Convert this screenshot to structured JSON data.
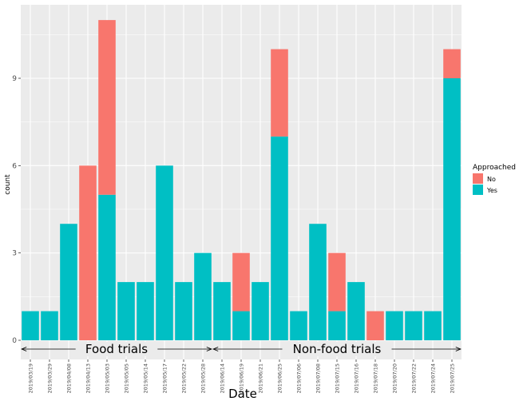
{
  "chart_data": {
    "type": "bar",
    "stacked": true,
    "title": "",
    "xlabel": "Date",
    "ylabel": "count",
    "ylim": [
      0,
      11.5
    ],
    "yticks": [
      0,
      3,
      6,
      9
    ],
    "grid": true,
    "legend": {
      "title": "Approached",
      "placement": "right",
      "entries": [
        "No",
        "Yes"
      ]
    },
    "colors": {
      "No": "#F8766D",
      "Yes": "#00BFC4",
      "panel": "#EBEBEB",
      "grid": "#FFFFFF"
    },
    "categories": [
      "2019/03/19",
      "2019/03/29",
      "2019/04/08",
      "2019/04/13",
      "2019/05/03",
      "2019/05/05",
      "2019/05/14",
      "2019/05/17",
      "2019/05/22",
      "2019/05/28",
      "2019/06/14",
      "2019/06/19",
      "2019/06/21",
      "2019/06/25",
      "2019/07/06",
      "2019/07/08",
      "2019/07/15",
      "2019/07/16",
      "2019/07/18",
      "2019/07/20",
      "2019/07/22",
      "2019/07/24",
      "2019/07/25"
    ],
    "series": [
      {
        "name": "Yes",
        "values": [
          1,
          1,
          4,
          0,
          5,
          2,
          2,
          6,
          2,
          3,
          2,
          1,
          2,
          7,
          1,
          4,
          1,
          2,
          0,
          1,
          1,
          1,
          9
        ]
      },
      {
        "name": "No",
        "values": [
          0,
          0,
          0,
          6,
          6,
          0,
          0,
          0,
          0,
          0,
          0,
          2,
          0,
          3,
          0,
          0,
          2,
          0,
          1,
          0,
          0,
          0,
          1
        ]
      }
    ],
    "annotations": [
      {
        "text": "Food trials",
        "from": "2019/03/19",
        "to": "2019/05/28"
      },
      {
        "text": "Non-food trials",
        "from": "2019/06/14",
        "to": "2019/07/25"
      }
    ]
  }
}
